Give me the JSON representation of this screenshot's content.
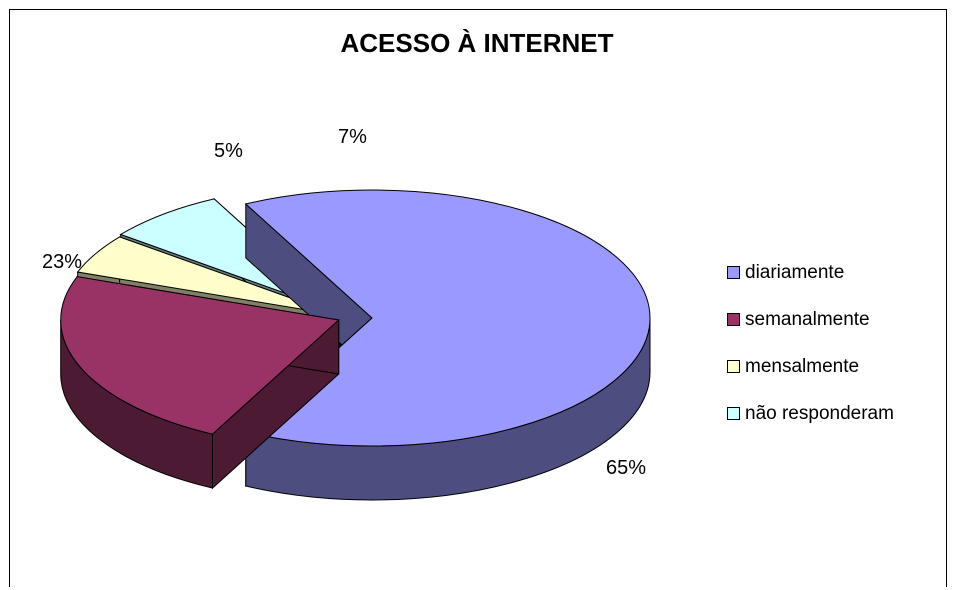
{
  "chart_data": {
    "type": "pie",
    "title": "ACESSO À INTERNET",
    "categories": [
      "diariamente",
      "semanalmente",
      "mensalmente",
      "não responderam"
    ],
    "values": [
      65,
      23,
      5,
      7
    ],
    "value_labels": [
      "65%",
      "23%",
      "5%",
      "7%"
    ],
    "colors": [
      "#9999ff",
      "#993366",
      "#ffffcc",
      "#ccffff"
    ],
    "side_colors": [
      "#4d4d80",
      "#4d1a33",
      "#808066",
      "#668080"
    ],
    "legend_position": "right",
    "three_d": true,
    "exploded": true
  }
}
